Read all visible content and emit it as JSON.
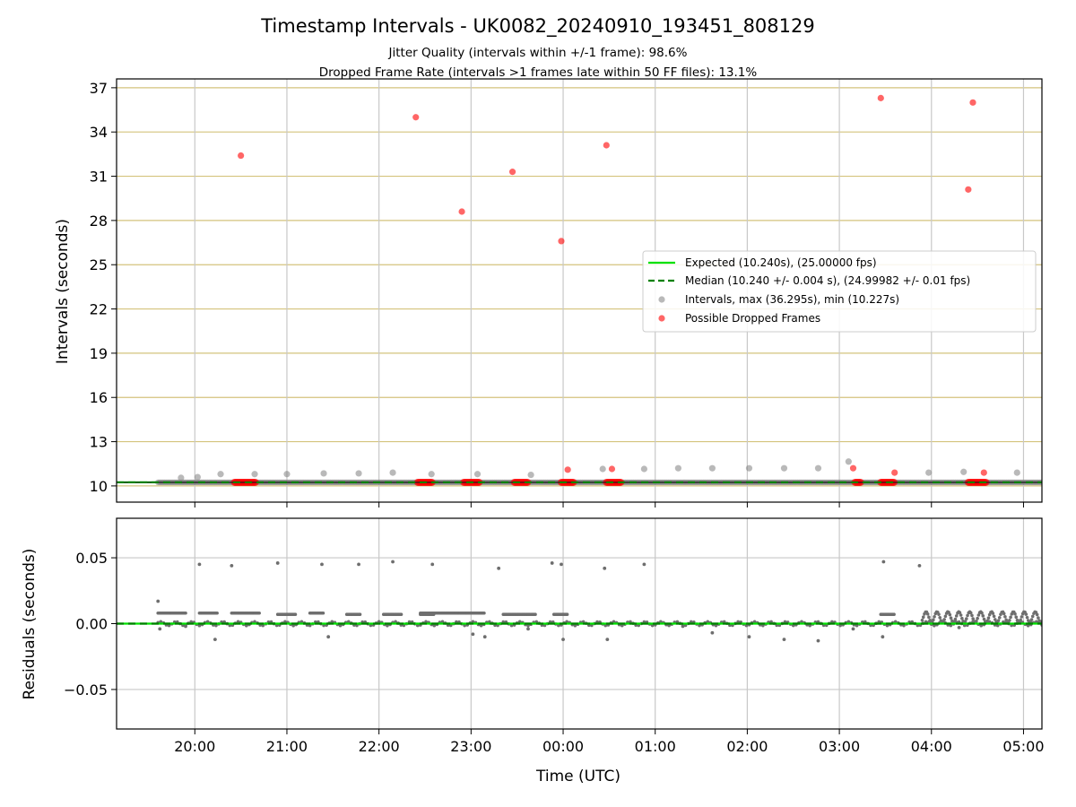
{
  "chart_data": [
    {
      "type": "scatter",
      "title": "Timestamp Intervals - UK0082_20240910_193451_808129",
      "subtitle_lines": [
        "Jitter Quality (intervals within +/-1 frame): 98.6%",
        "Dropped Frame Rate (intervals >1 frames late within 50 FF files): 13.1%"
      ],
      "xlabel": "",
      "ylabel": "Intervals (seconds)",
      "x_unit": "hours since 00:00 UTC (negative = before midnight)",
      "xlim": [
        -4.85,
        5.2
      ],
      "ylim": [
        8.9,
        37.6
      ],
      "yticks": [
        10,
        13,
        16,
        19,
        22,
        25,
        28,
        31,
        34,
        37
      ],
      "grid": true,
      "legend_position": "center-right",
      "legend": [
        "Expected (10.240s), (25.00000 fps)",
        "Median (10.240 +/- 0.004 s), (24.99982 +/- 0.01 fps)",
        "Intervals, max (36.295s), min (10.227s)",
        "Possible Dropped Frames"
      ],
      "expected": 10.24,
      "median": 10.24,
      "series": [
        {
          "name": "Intervals, max (36.295s), min (10.227s)",
          "color": "#808080",
          "x": [
            -4.15,
            -3.97,
            -3.72,
            -3.35,
            -3.0,
            -2.6,
            -2.22,
            -1.85,
            -1.43,
            -0.93,
            -0.35,
            0.43,
            0.88,
            1.25,
            1.62,
            2.02,
            2.4,
            2.77,
            3.1,
            3.97,
            4.35,
            4.93
          ],
          "y": [
            10.55,
            10.6,
            10.8,
            10.8,
            10.8,
            10.85,
            10.85,
            10.9,
            10.8,
            10.8,
            10.75,
            11.15,
            11.15,
            11.2,
            11.2,
            11.2,
            11.2,
            11.2,
            11.65,
            10.9,
            10.95,
            10.9
          ]
        },
        {
          "name": "Possible Dropped Frames",
          "color": "#ff0000",
          "x": [
            -3.5,
            -1.6,
            -1.1,
            -0.55,
            -0.02,
            0.05,
            0.47,
            0.53,
            3.15,
            3.45,
            3.6,
            4.4,
            4.45,
            4.57
          ],
          "y": [
            32.4,
            35.0,
            28.6,
            31.3,
            26.6,
            11.1,
            33.1,
            11.15,
            11.2,
            36.3,
            10.9,
            30.1,
            36.0,
            10.9
          ],
          "clusters": [
            {
              "x_start": -3.57,
              "x_end": -3.33,
              "y": 10.24
            },
            {
              "x_start": -1.58,
              "x_end": -1.42,
              "y": 10.24
            },
            {
              "x_start": -1.08,
              "x_end": -0.9,
              "y": 10.24
            },
            {
              "x_start": -0.53,
              "x_end": -0.38,
              "y": 10.24
            },
            {
              "x_start": -0.02,
              "x_end": 0.12,
              "y": 10.24
            },
            {
              "x_start": 0.47,
              "x_end": 0.63,
              "y": 10.24
            },
            {
              "x_start": 3.17,
              "x_end": 3.24,
              "y": 10.24
            },
            {
              "x_start": 3.45,
              "x_end": 3.6,
              "y": 10.24
            },
            {
              "x_start": 4.4,
              "x_end": 4.6,
              "y": 10.24
            }
          ]
        }
      ]
    },
    {
      "type": "scatter",
      "xlabel": "Time (UTC)",
      "ylabel": "Residuals (seconds)",
      "x_unit": "hours since 00:00 UTC (negative = before midnight)",
      "xlim": [
        -4.85,
        5.2
      ],
      "ylim": [
        -0.08,
        0.08
      ],
      "yticks": [
        0.05,
        0.0,
        -0.05
      ],
      "ytick_labels": [
        "0.05",
        "0.00",
        "−0.05"
      ],
      "xticks": [
        -4,
        -3,
        -2,
        -1,
        0,
        1,
        2,
        3,
        4,
        5
      ],
      "xtick_labels": [
        "20:00",
        "21:00",
        "22:00",
        "23:00",
        "00:00",
        "01:00",
        "02:00",
        "03:00",
        "04:00",
        "05:00"
      ],
      "grid": true,
      "series": [
        {
          "name": "",
          "color": "#6e6e6e",
          "bands": [
            {
              "x_start": -4.4,
              "x_end": -4.1,
              "y": 0.008
            },
            {
              "x_start": -3.95,
              "x_end": -3.75,
              "y": 0.008
            },
            {
              "x_start": -3.6,
              "x_end": -3.3,
              "y": 0.008
            },
            {
              "x_start": -3.1,
              "x_end": -2.9,
              "y": 0.007
            },
            {
              "x_start": -2.75,
              "x_end": -2.6,
              "y": 0.008
            },
            {
              "x_start": -2.35,
              "x_end": -2.2,
              "y": 0.007
            },
            {
              "x_start": -1.95,
              "x_end": -1.75,
              "y": 0.007
            },
            {
              "x_start": -1.55,
              "x_end": -1.4,
              "y": 0.007
            },
            {
              "x_start": -1.55,
              "x_end": -1.05,
              "y": 0.008
            },
            {
              "x_start": -1.05,
              "x_end": -0.85,
              "y": 0.008
            },
            {
              "x_start": -0.65,
              "x_end": -0.3,
              "y": 0.007
            },
            {
              "x_start": -0.1,
              "x_end": 0.05,
              "y": 0.007
            },
            {
              "x_start": 3.45,
              "x_end": 3.6,
              "y": 0.007
            },
            {
              "x_start": 3.9,
              "x_end": 5.2,
              "y": 0.005
            }
          ],
          "points_x": [
            -4.4,
            -4.38,
            -4.1,
            -3.95,
            -3.78,
            -3.6,
            -3.1,
            -2.62,
            -2.55,
            -2.22,
            -1.85,
            -1.42,
            -0.98,
            -0.85,
            -0.7,
            -0.38,
            -0.12,
            -0.02,
            0.0,
            0.45,
            0.48,
            0.88,
            1.3,
            1.62,
            2.02,
            2.4,
            2.77,
            3.15,
            3.48,
            3.47,
            3.87,
            4.3
          ],
          "points_y": [
            0.017,
            -0.004,
            -0.002,
            0.045,
            -0.012,
            0.044,
            0.046,
            0.045,
            -0.01,
            0.045,
            0.047,
            0.045,
            -0.008,
            -0.01,
            0.042,
            -0.004,
            0.046,
            0.045,
            -0.012,
            0.042,
            -0.012,
            0.045,
            -0.002,
            -0.007,
            -0.01,
            -0.012,
            -0.013,
            -0.004,
            0.047,
            -0.01,
            0.044,
            -0.003
          ]
        },
        {
          "name": "",
          "color": "#00e000",
          "y": 0.0
        }
      ]
    }
  ]
}
